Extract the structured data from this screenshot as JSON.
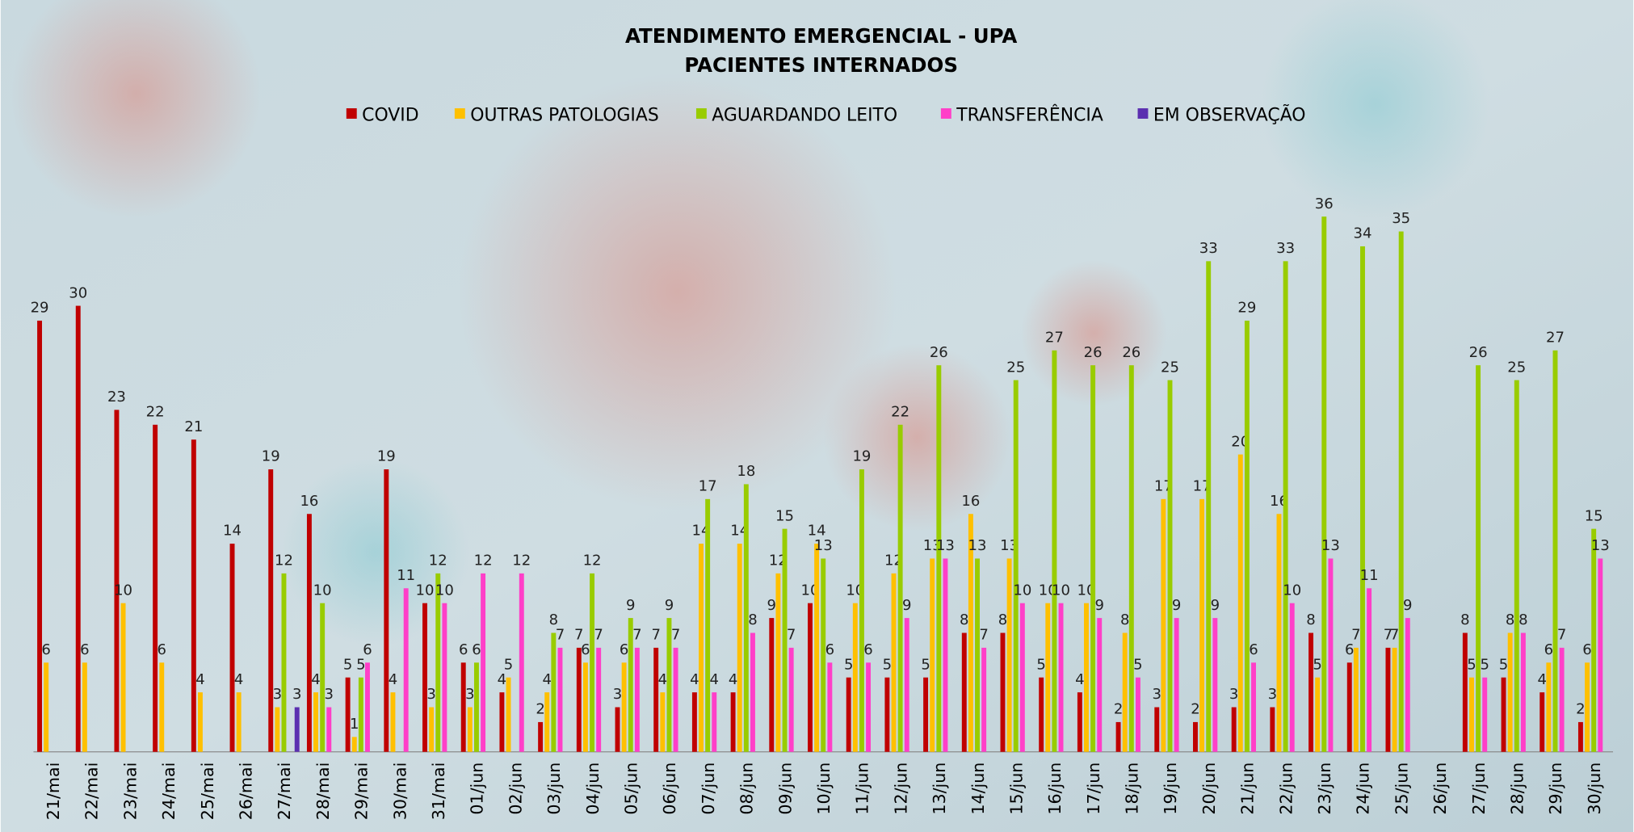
{
  "chart_data": {
    "type": "bar",
    "title": "ATENDIMENTO EMERGENCIAL - UPA",
    "subtitle": "PACIENTES INTERNADOS",
    "categories": [
      "21/mai",
      "22/mai",
      "23/mai",
      "24/mai",
      "25/mai",
      "26/mai",
      "27/mai",
      "28/mai",
      "29/mai",
      "30/mai",
      "31/mai",
      "01/jun",
      "02/jun",
      "03/jun",
      "04/jun",
      "05/jun",
      "06/jun",
      "07/jun",
      "08/jun",
      "09/jun",
      "10/jun",
      "11/jun",
      "12/jun",
      "13/jun",
      "14/jun",
      "15/jun",
      "16/jun",
      "17/jun",
      "18/jun",
      "19/jun",
      "20/jun",
      "21/jun",
      "22/jun",
      "23/jun",
      "24/jun",
      "25/jun",
      "26/jun",
      "27/jun",
      "28/jun",
      "29/jun",
      "30/jun"
    ],
    "series": [
      {
        "name": "COVID",
        "color": "#c00000",
        "values": [
          29,
          30,
          23,
          22,
          21,
          14,
          19,
          16,
          5,
          19,
          10,
          6,
          4,
          2,
          7,
          3,
          7,
          4,
          4,
          9,
          10,
          5,
          5,
          5,
          8,
          8,
          5,
          4,
          2,
          3,
          2,
          3,
          3,
          8,
          6,
          7,
          null,
          8,
          5,
          4,
          2
        ]
      },
      {
        "name": "OUTRAS PATOLOGIAS",
        "color": "#ffc000",
        "values": [
          6,
          6,
          10,
          6,
          4,
          4,
          3,
          4,
          1,
          4,
          3,
          3,
          5,
          4,
          6,
          6,
          4,
          14,
          14,
          12,
          14,
          10,
          12,
          13,
          16,
          13,
          10,
          10,
          8,
          17,
          17,
          20,
          16,
          5,
          7,
          7,
          null,
          5,
          8,
          6,
          6
        ]
      },
      {
        "name": "AGUARDANDO LEITO",
        "color": "#99cc00",
        "values": [
          null,
          null,
          null,
          null,
          null,
          null,
          12,
          10,
          5,
          null,
          12,
          6,
          null,
          8,
          12,
          9,
          9,
          17,
          18,
          15,
          13,
          19,
          22,
          26,
          13,
          25,
          27,
          26,
          26,
          25,
          33,
          29,
          33,
          36,
          34,
          35,
          null,
          26,
          25,
          27,
          15
        ]
      },
      {
        "name": "TRANSFERÊNCIA",
        "color": "#ff3fc8",
        "values": [
          null,
          null,
          null,
          null,
          null,
          null,
          null,
          3,
          6,
          11,
          10,
          12,
          12,
          7,
          7,
          7,
          7,
          4,
          8,
          7,
          6,
          6,
          9,
          13,
          7,
          10,
          10,
          9,
          5,
          9,
          9,
          6,
          10,
          13,
          11,
          9,
          null,
          5,
          8,
          7,
          13
        ]
      },
      {
        "name": "EM OBSERVAÇÃO",
        "color": "#5b2fb0",
        "values": [
          null,
          null,
          null,
          null,
          null,
          null,
          3,
          null,
          null,
          null,
          null,
          null,
          null,
          null,
          null,
          null,
          null,
          null,
          null,
          null,
          null,
          null,
          null,
          null,
          null,
          null,
          null,
          null,
          null,
          null,
          null,
          null,
          null,
          null,
          null,
          null,
          null,
          null,
          null,
          null,
          null
        ]
      }
    ]
  }
}
